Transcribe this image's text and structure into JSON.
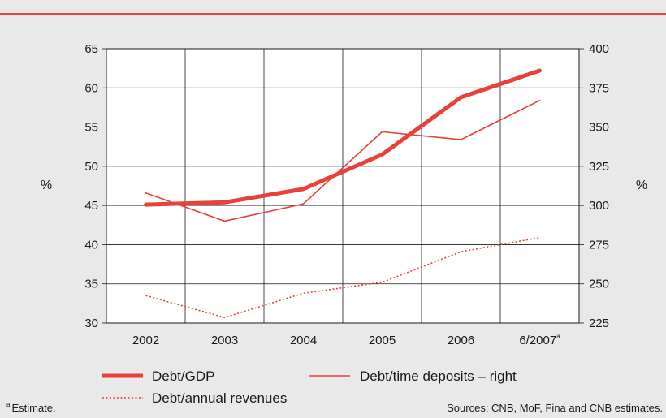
{
  "chart_data": {
    "type": "line",
    "categories": [
      "2002",
      "2003",
      "2004",
      "2005",
      "2006",
      "6/2007"
    ],
    "last_category_marker": "a",
    "y_left": {
      "label": "%",
      "lim": [
        30,
        65
      ],
      "ticks": [
        30,
        35,
        40,
        45,
        50,
        55,
        60,
        65
      ]
    },
    "y_right": {
      "label": "%",
      "lim": [
        225,
        400
      ],
      "ticks": [
        225,
        250,
        275,
        300,
        325,
        350,
        375,
        400
      ]
    },
    "grid": true,
    "series": [
      {
        "name": "Debt/GDP",
        "axis": "left",
        "style": "thick",
        "values": [
          45.1,
          45.4,
          47.1,
          51.5,
          58.8,
          62.2
        ]
      },
      {
        "name": "Debt/time deposits – right",
        "axis": "right",
        "style": "thin",
        "values": [
          308,
          290,
          301,
          347,
          342,
          367
        ]
      },
      {
        "name": "Debt/annual revenues",
        "axis": "left",
        "style": "dotted",
        "values": [
          33.5,
          30.7,
          33.8,
          35.2,
          39.1,
          40.9
        ]
      }
    ],
    "legend_position": "bottom",
    "colors": {
      "line": "#e8413a",
      "accent": "#e8413a",
      "background": "#e9e9ea",
      "plot_bg": "#ffffff"
    }
  },
  "footnote": {
    "marker": "a",
    "text": "Estimate."
  },
  "sources": "Sources: CNB, MoF, Fina and CNB estimates."
}
